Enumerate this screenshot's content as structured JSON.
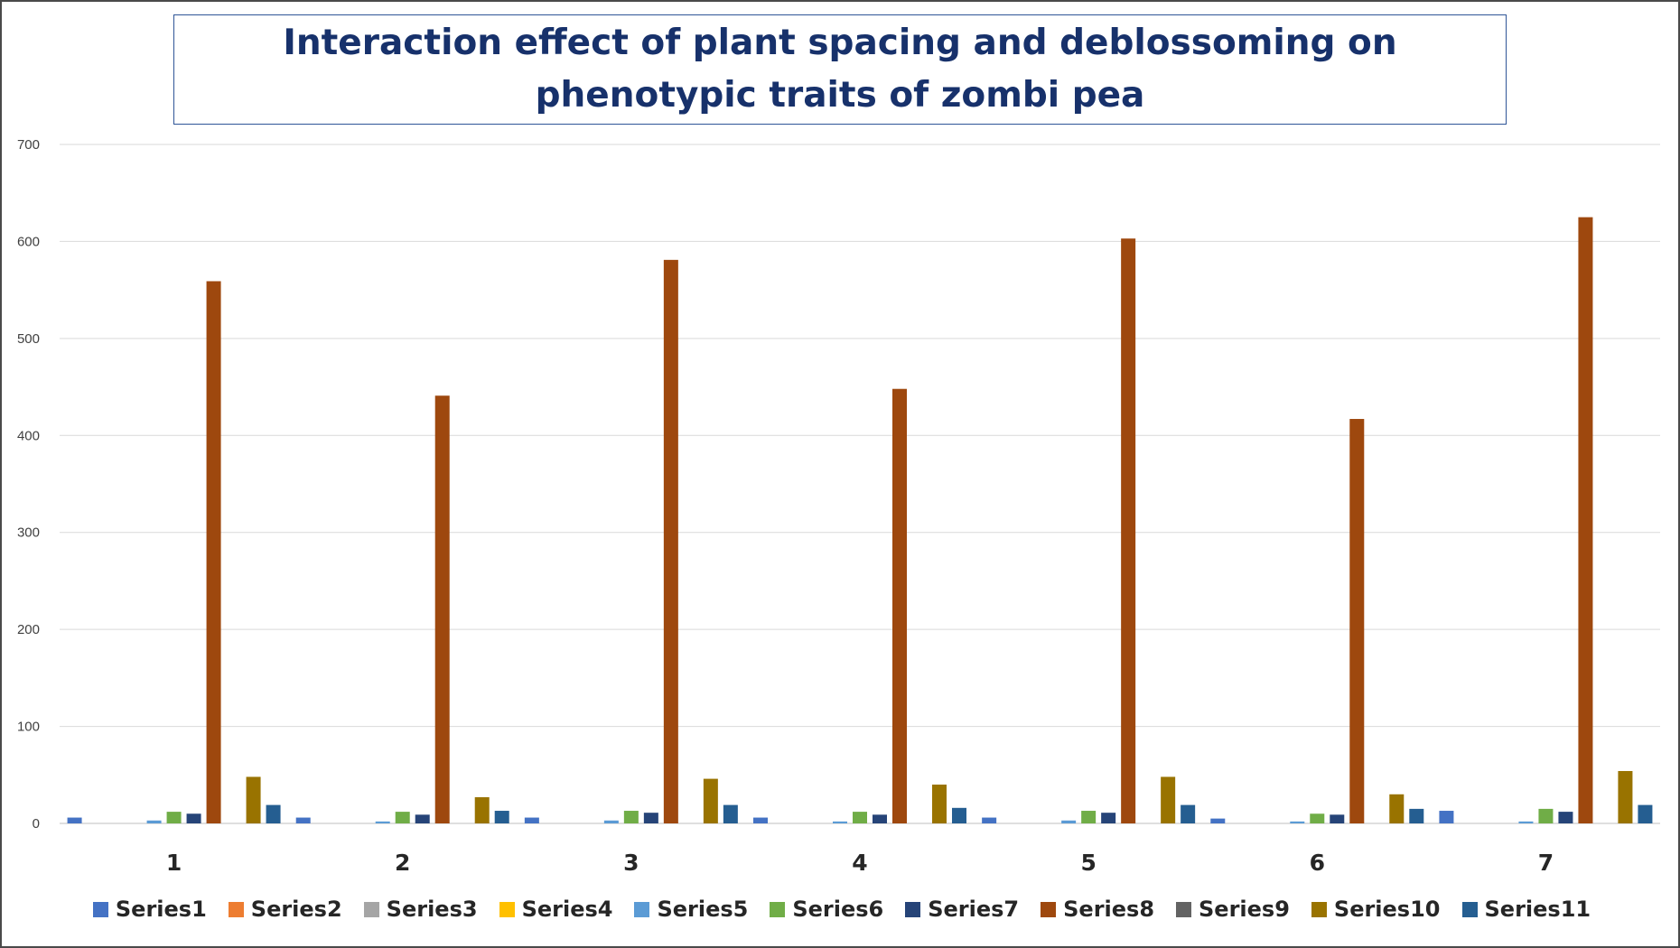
{
  "chart_data": {
    "type": "bar",
    "title": "Interaction effect of plant spacing and deblossoming on phenotypic traits of zombi pea",
    "categories": [
      "1",
      "2",
      "3",
      "4",
      "5",
      "6",
      "7"
    ],
    "ylim": [
      0,
      700
    ],
    "yticks": [
      "0",
      "100",
      "200",
      "300",
      "400",
      "500",
      "600",
      "700"
    ],
    "grid": true,
    "legend_position": "bottom",
    "series": [
      {
        "name": "Series1",
        "color": "#4472c4",
        "values": [
          6,
          6,
          6,
          6,
          6,
          5,
          13
        ]
      },
      {
        "name": "Series2",
        "color": "#ed7d31",
        "values": [
          0,
          0,
          0,
          0,
          0,
          0,
          0
        ]
      },
      {
        "name": "Series3",
        "color": "#a5a5a5",
        "values": [
          0,
          0,
          0,
          0,
          0,
          0,
          0
        ]
      },
      {
        "name": "Series4",
        "color": "#ffc000",
        "values": [
          0,
          0,
          0,
          0,
          0,
          0,
          0
        ]
      },
      {
        "name": "Series5",
        "color": "#5b9bd5",
        "values": [
          3,
          2,
          3,
          2,
          3,
          2,
          2
        ]
      },
      {
        "name": "Series6",
        "color": "#70ad47",
        "values": [
          12,
          12,
          13,
          12,
          13,
          10,
          15
        ]
      },
      {
        "name": "Series7",
        "color": "#264478",
        "values": [
          10,
          9,
          11,
          9,
          11,
          9,
          12
        ]
      },
      {
        "name": "Series8",
        "color": "#9e480e",
        "values": [
          559,
          441,
          581,
          448,
          603,
          417,
          625
        ]
      },
      {
        "name": "Series9",
        "color": "#636363",
        "values": [
          0,
          0,
          0,
          0,
          0,
          0,
          0
        ]
      },
      {
        "name": "Series10",
        "color": "#997300",
        "values": [
          48,
          27,
          46,
          40,
          48,
          30,
          54
        ]
      },
      {
        "name": "Series11",
        "color": "#255e91",
        "values": [
          19,
          13,
          19,
          16,
          19,
          15,
          19
        ]
      }
    ]
  }
}
